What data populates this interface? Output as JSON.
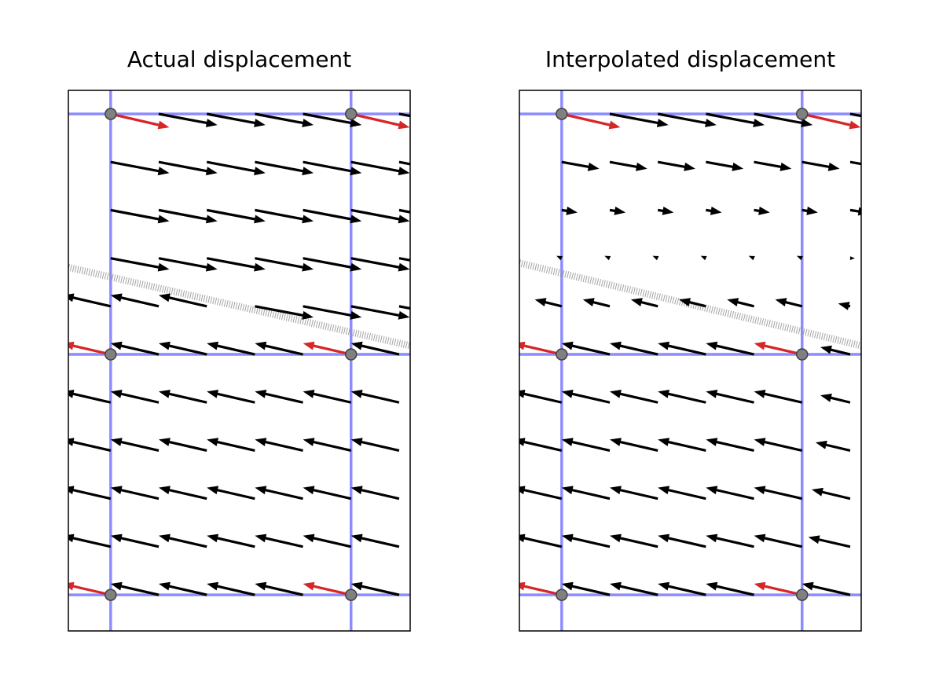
{
  "chart_data": [
    {
      "type": "quiver",
      "title": "Actual displacement",
      "xlim": [
        -0.88,
        6.23
      ],
      "ylim": [
        10.75,
        -0.49
      ],
      "grid_x": [
        0,
        5
      ],
      "grid_y": [
        0,
        5,
        10
      ],
      "grid_color": "#8080ff",
      "fault_x": [
        -0.88,
        6.23
      ],
      "fault_y": [
        3.19,
        4.82
      ],
      "series": [
        {
          "color": "#000000",
          "x": [
            1,
            2,
            3,
            4,
            6,
            0,
            1,
            2,
            3,
            4,
            5,
            6,
            0,
            1,
            2,
            3,
            4,
            5,
            6,
            0,
            1,
            2,
            3,
            4,
            5,
            6,
            0,
            1,
            2,
            3,
            4,
            5,
            6,
            1,
            2,
            3,
            4,
            6,
            0,
            1,
            2,
            3,
            4,
            5,
            6,
            0,
            1,
            2,
            3,
            4,
            5,
            6,
            0,
            1,
            2,
            3,
            4,
            5,
            6,
            0,
            1,
            2,
            3,
            4,
            5,
            6,
            1,
            2,
            3,
            4,
            6
          ],
          "y": [
            0,
            0,
            0,
            0,
            0,
            1,
            1,
            1,
            1,
            1,
            1,
            1,
            2,
            2,
            2,
            2,
            2,
            2,
            2,
            3,
            3,
            3,
            3,
            3,
            3,
            3,
            4,
            4,
            4,
            4,
            4,
            4,
            4,
            5,
            5,
            5,
            5,
            5,
            6,
            6,
            6,
            6,
            6,
            6,
            6,
            7,
            7,
            7,
            7,
            7,
            7,
            7,
            8,
            8,
            8,
            8,
            8,
            8,
            8,
            9,
            9,
            9,
            9,
            9,
            9,
            9,
            10,
            10,
            10,
            10,
            10
          ],
          "u": [
            1.22,
            1.22,
            1.22,
            1.22,
            1.22,
            1.22,
            1.22,
            1.22,
            1.22,
            1.22,
            1.22,
            1.22,
            1.22,
            1.22,
            1.22,
            1.22,
            1.22,
            1.22,
            1.22,
            1.22,
            1.22,
            1.22,
            1.22,
            1.22,
            1.22,
            1.22,
            -1,
            -1,
            -1,
            1.22,
            1.22,
            1.22,
            1.22,
            -1,
            -1,
            -1,
            -1,
            -1,
            -1,
            -1,
            -1,
            -1,
            -1,
            -1,
            -1,
            -1,
            -1,
            -1,
            -1,
            -1,
            -1,
            -1,
            -1,
            -1,
            -1,
            -1,
            -1,
            -1,
            -1,
            -1,
            -1,
            -1,
            -1,
            -1,
            -1,
            -1,
            -1,
            -1,
            -1,
            -1,
            -1
          ],
          "v": [
            0.23,
            0.23,
            0.23,
            0.23,
            0.23,
            0.23,
            0.23,
            0.23,
            0.23,
            0.23,
            0.23,
            0.23,
            0.23,
            0.23,
            0.23,
            0.23,
            0.23,
            0.23,
            0.23,
            0.23,
            0.23,
            0.23,
            0.23,
            0.23,
            0.23,
            0.23,
            -0.23,
            -0.23,
            -0.23,
            0.23,
            0.23,
            0.23,
            0.23,
            -0.23,
            -0.23,
            -0.23,
            -0.23,
            -0.23,
            -0.23,
            -0.23,
            -0.23,
            -0.23,
            -0.23,
            -0.23,
            -0.23,
            -0.23,
            -0.23,
            -0.23,
            -0.23,
            -0.23,
            -0.23,
            -0.23,
            -0.23,
            -0.23,
            -0.23,
            -0.23,
            -0.23,
            -0.23,
            -0.23,
            -0.23,
            -0.23,
            -0.23,
            -0.23,
            -0.23,
            -0.23,
            -0.23,
            -0.23,
            -0.23,
            -0.23,
            -0.23,
            -0.23
          ]
        },
        {
          "color": "#d62728",
          "x": [
            0,
            5,
            0,
            5,
            0,
            5
          ],
          "y": [
            0,
            0,
            5,
            5,
            10,
            10
          ],
          "u": [
            1.22,
            1.22,
            -1,
            -1,
            -1,
            -1
          ],
          "v": [
            0.28,
            0.28,
            -0.23,
            -0.23,
            -0.23,
            -0.23
          ]
        }
      ]
    },
    {
      "type": "quiver",
      "title": "Interpolated displacement",
      "xlim": [
        -0.88,
        6.23
      ],
      "ylim": [
        10.75,
        -0.49
      ],
      "grid_x": [
        0,
        5
      ],
      "grid_y": [
        0,
        5,
        10
      ],
      "grid_color": "#8080ff",
      "fault_x": [
        -0.88,
        6.23
      ],
      "fault_y": [
        3.1,
        4.82
      ],
      "series": [
        {
          "color": "#000000",
          "x": [
            1,
            2,
            3,
            4,
            6,
            0,
            1,
            2,
            3,
            4,
            5,
            6,
            0,
            1,
            2,
            3,
            4,
            5,
            6,
            0,
            1,
            2,
            3,
            4,
            5,
            6,
            0,
            1,
            2,
            3,
            4,
            5,
            6,
            1,
            2,
            3,
            4,
            6,
            0,
            1,
            2,
            3,
            4,
            5,
            6,
            0,
            1,
            2,
            3,
            4,
            5,
            6,
            0,
            1,
            2,
            3,
            4,
            5,
            6,
            0,
            1,
            2,
            3,
            4,
            5,
            6,
            1,
            2,
            3,
            4,
            6
          ],
          "y": [
            0,
            0,
            0,
            0,
            0,
            1,
            1,
            1,
            1,
            1,
            1,
            1,
            2,
            2,
            2,
            2,
            2,
            2,
            2,
            3,
            3,
            3,
            3,
            3,
            3,
            3,
            4,
            4,
            4,
            4,
            4,
            4,
            4,
            5,
            5,
            5,
            5,
            5,
            6,
            6,
            6,
            6,
            6,
            6,
            6,
            7,
            7,
            7,
            7,
            7,
            7,
            7,
            8,
            8,
            8,
            8,
            8,
            8,
            8,
            9,
            9,
            9,
            9,
            9,
            9,
            9,
            10,
            10,
            10,
            10,
            10
          ],
          "u": [
            1.22,
            1.22,
            1.22,
            1.22,
            1.22,
            0.78,
            0.78,
            0.78,
            0.78,
            0.78,
            0.78,
            0.8,
            0.33,
            0.33,
            0.33,
            0.33,
            0.33,
            0.33,
            0.4,
            -0.11,
            -0.11,
            -0.11,
            -0.11,
            -0.11,
            -0.11,
            0.1,
            -0.56,
            -0.56,
            -0.56,
            -0.56,
            -0.56,
            -0.56,
            -0.25,
            -1,
            -1,
            -1,
            -1,
            -0.62,
            -1,
            -1,
            -1,
            -1,
            -1,
            -1,
            -0.62,
            -1,
            -1,
            -1,
            -1,
            -1,
            -1,
            -0.72,
            -1,
            -1,
            -1,
            -1,
            -1,
            -1,
            -0.8,
            -1,
            -1,
            -1,
            -1,
            -1,
            -1,
            -0.87,
            -1,
            -1,
            -1,
            -1,
            -1
          ],
          "v": [
            0.23,
            0.23,
            0.23,
            0.23,
            0.23,
            0.14,
            0.14,
            0.14,
            0.14,
            0.14,
            0.14,
            0.14,
            0.05,
            0.05,
            0.05,
            0.05,
            0.05,
            0.05,
            0.06,
            -0.05,
            -0.05,
            -0.05,
            -0.05,
            -0.05,
            -0.05,
            0,
            -0.14,
            -0.14,
            -0.14,
            -0.14,
            -0.14,
            -0.14,
            -0.06,
            -0.23,
            -0.23,
            -0.23,
            -0.23,
            -0.15,
            -0.23,
            -0.23,
            -0.23,
            -0.23,
            -0.23,
            -0.23,
            -0.15,
            -0.23,
            -0.23,
            -0.23,
            -0.23,
            -0.23,
            -0.23,
            -0.17,
            -0.23,
            -0.23,
            -0.23,
            -0.23,
            -0.23,
            -0.23,
            -0.19,
            -0.23,
            -0.23,
            -0.23,
            -0.23,
            -0.23,
            -0.23,
            -0.2,
            -0.23,
            -0.23,
            -0.23,
            -0.23,
            -0.23
          ]
        },
        {
          "color": "#d62728",
          "x": [
            0,
            5,
            0,
            5,
            0,
            5
          ],
          "y": [
            0,
            0,
            5,
            5,
            10,
            10
          ],
          "u": [
            1.22,
            1.22,
            -1,
            -1,
            -1,
            -1
          ],
          "v": [
            0.28,
            0.28,
            -0.23,
            -0.23,
            -0.23,
            -0.23
          ]
        }
      ]
    }
  ]
}
